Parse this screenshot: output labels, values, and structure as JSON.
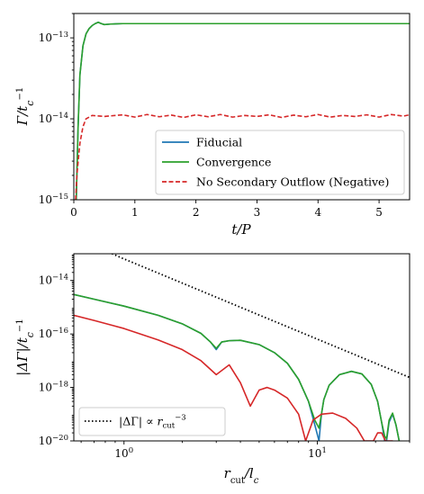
{
  "chart_data": [
    {
      "type": "line",
      "xlabel": "t/P",
      "ylabel": "Γ/t_c^{-1}",
      "xscale": "linear",
      "yscale": "log",
      "xlim": [
        0,
        5.5
      ],
      "ylim": [
        1e-15,
        2e-13
      ],
      "xticks": [
        0,
        1,
        2,
        3,
        4,
        5
      ],
      "xtick_labels": [
        "0",
        "1",
        "2",
        "3",
        "4",
        "5"
      ],
      "yticks": [
        1e-15,
        1e-14,
        1e-13
      ],
      "ytick_labels": [
        {
          "base": "10",
          "exp": "−15"
        },
        {
          "base": "10",
          "exp": "−14"
        },
        {
          "base": "10",
          "exp": "−13"
        }
      ],
      "grid": false,
      "legend": {
        "placement": "lower-right",
        "entries": [
          {
            "label": "Fiducial",
            "color": "#1f77b4",
            "style": "solid"
          },
          {
            "label": "Convergence",
            "color": "#2ca02c",
            "style": "solid"
          },
          {
            "label": "No Secondary Outflow (Negative)",
            "color": "#d62728",
            "style": "dashed"
          }
        ]
      },
      "series": [
        {
          "name": "Fiducial",
          "color": "#1f77b4",
          "style": "solid",
          "x": [
            0.04,
            0.07,
            0.1,
            0.15,
            0.2,
            0.25,
            0.3,
            0.35,
            0.4,
            0.45,
            0.5,
            0.6,
            0.8,
            1.0,
            2.0,
            3.0,
            4.0,
            5.0,
            5.5
          ],
          "y": [
            1e-15,
            8e-15,
            3.5e-14,
            8e-14,
            1.12e-13,
            1.3e-13,
            1.42e-13,
            1.5e-13,
            1.56e-13,
            1.5e-13,
            1.46e-13,
            1.48e-13,
            1.5e-13,
            1.5e-13,
            1.5e-13,
            1.5e-13,
            1.5e-13,
            1.5e-13,
            1.5e-13
          ]
        },
        {
          "name": "Convergence",
          "color": "#2ca02c",
          "style": "solid",
          "x": [
            0.04,
            0.07,
            0.1,
            0.15,
            0.2,
            0.25,
            0.3,
            0.35,
            0.4,
            0.45,
            0.5,
            0.6,
            0.8,
            1.0,
            2.0,
            3.0,
            4.0,
            5.0,
            5.5
          ],
          "y": [
            1e-15,
            8e-15,
            3.5e-14,
            8e-14,
            1.12e-13,
            1.3e-13,
            1.42e-13,
            1.5e-13,
            1.56e-13,
            1.5e-13,
            1.46e-13,
            1.48e-13,
            1.5e-13,
            1.5e-13,
            1.5e-13,
            1.5e-13,
            1.5e-13,
            1.5e-13,
            1.5e-13
          ]
        },
        {
          "name": "No Secondary Outflow (Negative)",
          "color": "#d62728",
          "style": "dashed",
          "x": [
            0.03,
            0.05,
            0.08,
            0.1,
            0.15,
            0.2,
            0.3,
            0.5,
            0.8,
            1.0,
            1.2,
            1.4,
            1.6,
            1.8,
            2.0,
            2.2,
            2.4,
            2.6,
            2.8,
            3.0,
            3.2,
            3.4,
            3.6,
            3.8,
            4.0,
            4.2,
            4.4,
            4.6,
            4.8,
            5.0,
            5.2,
            5.4,
            5.5
          ],
          "y": [
            1e-15,
            2e-15,
            3.5e-15,
            5e-15,
            8e-15,
            1e-14,
            1.1e-14,
            1.07e-14,
            1.12e-14,
            1.05e-14,
            1.13e-14,
            1.06e-14,
            1.11e-14,
            1.04e-14,
            1.12e-14,
            1.06e-14,
            1.13e-14,
            1.05e-14,
            1.1e-14,
            1.07e-14,
            1.12e-14,
            1.04e-14,
            1.11e-14,
            1.06e-14,
            1.13e-14,
            1.05e-14,
            1.1e-14,
            1.07e-14,
            1.12e-14,
            1.05e-14,
            1.13e-14,
            1.08e-14,
            1.12e-14
          ]
        }
      ]
    },
    {
      "type": "line",
      "xlabel": "r_cut/l_c",
      "ylabel": "|ΔΓ|/t_c^{-1}",
      "xscale": "log",
      "yscale": "log",
      "xlim": [
        0.55,
        30
      ],
      "ylim": [
        1e-20,
        1e-13
      ],
      "xticks": [
        1,
        10
      ],
      "xtick_labels": [
        {
          "base": "10",
          "exp": "0"
        },
        {
          "base": "10",
          "exp": "1"
        }
      ],
      "yticks": [
        1e-20,
        1e-18,
        1e-16,
        1e-14
      ],
      "ytick_labels": [
        {
          "base": "10",
          "exp": "−20"
        },
        {
          "base": "10",
          "exp": "−18"
        },
        {
          "base": "10",
          "exp": "−16"
        },
        {
          "base": "10",
          "exp": "−14"
        }
      ],
      "grid": false,
      "legend": {
        "placement": "lower-left",
        "entries": [
          {
            "label": "|ΔΓ| ∝ r_cut^{-3}",
            "color": "#000000",
            "style": "dotted"
          }
        ]
      },
      "series": [
        {
          "name": "Fiducial",
          "color": "#1f77b4",
          "style": "solid",
          "x": [
            0.55,
            0.7,
            1.0,
            1.5,
            2.0,
            2.5,
            2.8,
            3.0,
            3.2,
            3.5,
            4.0,
            5.0,
            6.0,
            7.0,
            8.0,
            9.0,
            9.7,
            10.2,
            10.5,
            10.8,
            11.5,
            13.0,
            15.0,
            17.0,
            19.0,
            20.5,
            21.5,
            22.3,
            22.8,
            23.5,
            24.5,
            25.5,
            26.5
          ],
          "y": [
            3e-15,
            2e-15,
            1.1e-15,
            5e-16,
            2.4e-16,
            1.05e-16,
            5e-17,
            2.6e-17,
            5e-17,
            5.6e-17,
            5.8e-17,
            4e-17,
            2e-17,
            8e-18,
            2e-18,
            3e-19,
            4e-20,
            1e-20,
            1e-19,
            3.5e-19,
            1.2e-18,
            3e-18,
            4e-18,
            3.2e-18,
            1.3e-18,
            3e-19,
            5e-20,
            1e-20,
            1e-20,
            5e-20,
            1e-19,
            4e-20,
            1e-20
          ]
        },
        {
          "name": "Convergence",
          "color": "#2ca02c",
          "style": "solid",
          "x": [
            0.55,
            0.7,
            1.0,
            1.5,
            2.0,
            2.5,
            2.8,
            3.0,
            3.2,
            3.5,
            4.0,
            5.0,
            6.0,
            7.0,
            8.0,
            9.0,
            9.7,
            10.2,
            10.5,
            10.8,
            11.5,
            13.0,
            15.0,
            17.0,
            19.0,
            20.5,
            21.5,
            22.3,
            22.8,
            23.5,
            24.5,
            25.5,
            26.5
          ],
          "y": [
            3e-15,
            2e-15,
            1.1e-15,
            5e-16,
            2.4e-16,
            1.05e-16,
            5e-17,
            2.9e-17,
            5e-17,
            5.6e-17,
            5.8e-17,
            4e-17,
            2e-17,
            8e-18,
            2e-18,
            3e-19,
            6e-20,
            3e-20,
            1e-19,
            3.5e-19,
            1.2e-18,
            3e-18,
            4e-18,
            3.2e-18,
            1.3e-18,
            3e-19,
            5e-20,
            1.5e-20,
            1.2e-20,
            6e-20,
            1.1e-19,
            4e-20,
            1e-20
          ]
        },
        {
          "name": "No Secondary Outflow",
          "color": "#d62728",
          "style": "solid",
          "x": [
            0.55,
            0.7,
            1.0,
            1.5,
            2.0,
            2.5,
            3.0,
            3.5,
            4.0,
            4.5,
            5.0,
            5.5,
            6.0,
            7.0,
            8.0,
            8.7,
            9.5,
            10.5,
            12.0,
            14.0,
            16.0,
            17.5,
            18.5,
            19.5,
            20.5,
            21.5,
            22.5,
            23.5,
            24.5
          ],
          "y": [
            5e-16,
            3.2e-16,
            1.6e-16,
            6e-17,
            2.6e-17,
            1e-17,
            3e-18,
            7e-18,
            1.5e-18,
            2e-19,
            8e-19,
            1e-18,
            8e-19,
            4e-19,
            1e-19,
            1e-20,
            6e-20,
            1e-19,
            1.1e-19,
            7e-20,
            3e-20,
            1e-20,
            1e-20,
            1e-20,
            2e-20,
            2e-20,
            1e-20,
            1e-20,
            1e-20
          ]
        },
        {
          "name": "|ΔΓ| ∝ r_cut^{-3}",
          "color": "#000000",
          "style": "dotted",
          "x": [
            0.8,
            1.0,
            1.5,
            2.0,
            3.0,
            5.0,
            8.0,
            10.0,
            15.0,
            20.0,
            30.0
          ],
          "y": [
            1.3e-13,
            6.4e-14,
            1.9e-14,
            8e-15,
            2.37e-15,
            5.1e-16,
            1.25e-16,
            6.4e-17,
            1.9e-17,
            8e-18,
            2.37e-18
          ]
        }
      ]
    }
  ]
}
